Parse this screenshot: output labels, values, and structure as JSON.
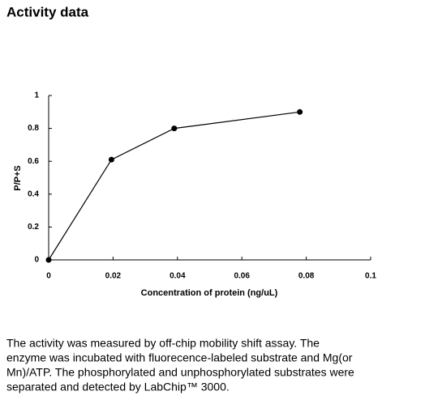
{
  "header": {
    "title": "Activity data"
  },
  "chart_data": {
    "type": "line",
    "xlabel": "Concentration of protein (ng/uL)",
    "ylabel": "P/P+S",
    "x": [
      0,
      0.0195,
      0.039,
      0.078
    ],
    "series": [
      {
        "color": "#000000",
        "values": [
          0,
          0.61,
          0.8,
          0.9
        ]
      }
    ],
    "xlim": [
      0,
      0.1
    ],
    "xticks": [
      0,
      0.02,
      0.04,
      0.06,
      0.08,
      0.1
    ],
    "ylim": [
      0,
      1
    ],
    "yticks": [
      0,
      0.2,
      0.4,
      0.6,
      0.8,
      1
    ]
  },
  "caption": {
    "lines": [
      "The activity was measured by off-chip mobility shift assay. The",
      "enzyme was incubated with fluorecence-labeled  substrate and Mg(or",
      "Mn)/ATP. The phosphorylated and unphosphorylated substrates were",
      "separated and detected by LabChip™ 3000."
    ]
  }
}
